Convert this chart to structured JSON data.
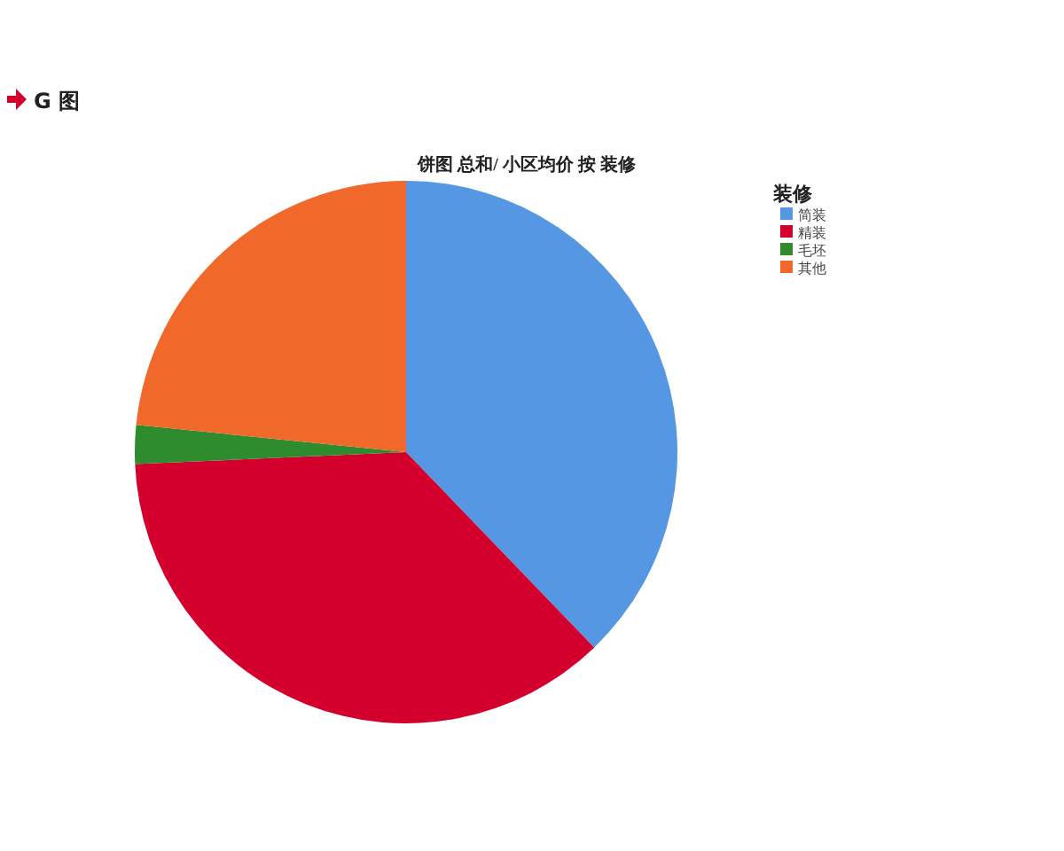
{
  "chart_data": {
    "type": "pie",
    "title": "饼图 总和/ 小区均价 按 装修",
    "legend_title": "装修",
    "legend": "top right",
    "annotations": [
      "G 图"
    ],
    "categories": [
      "简装",
      "精装",
      "毛坯",
      "其他"
    ],
    "values": [
      37.8,
      36.5,
      2.3,
      23.4
    ],
    "colors": [
      "#5597e2",
      "#d3002e",
      "#2e8b2e",
      "#f0692b"
    ]
  }
}
